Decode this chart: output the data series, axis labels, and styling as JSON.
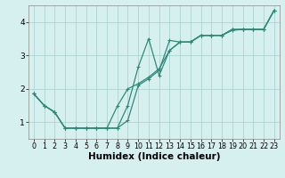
{
  "title": "",
  "xlabel": "Humidex (Indice chaleur)",
  "ylabel": "",
  "bg_color": "#d6f0f0",
  "line_color": "#2e8b7a",
  "grid_color": "#aed4d4",
  "xlim": [
    -0.5,
    23.5
  ],
  "ylim": [
    0.5,
    4.5
  ],
  "xticks": [
    0,
    1,
    2,
    3,
    4,
    5,
    6,
    7,
    8,
    9,
    10,
    11,
    12,
    13,
    14,
    15,
    16,
    17,
    18,
    19,
    20,
    21,
    22,
    23
  ],
  "yticks": [
    1,
    2,
    3,
    4
  ],
  "series1_x": [
    0,
    1,
    2,
    3,
    4,
    5,
    6,
    7,
    8,
    9,
    10,
    11,
    12,
    13,
    14,
    15,
    16,
    17,
    18,
    19,
    20,
    21,
    22,
    23
  ],
  "series1_y": [
    1.85,
    1.5,
    1.3,
    0.82,
    0.82,
    0.82,
    0.82,
    0.82,
    0.82,
    1.05,
    2.1,
    2.3,
    2.55,
    3.45,
    3.4,
    3.4,
    3.6,
    3.6,
    3.6,
    3.75,
    3.78,
    3.78,
    3.78,
    4.35
  ],
  "series2_x": [
    0,
    1,
    2,
    3,
    4,
    5,
    6,
    7,
    8,
    9,
    10,
    11,
    12,
    13,
    14,
    15,
    16,
    17,
    18,
    19,
    20,
    21,
    22,
    23
  ],
  "series2_y": [
    1.85,
    1.5,
    1.3,
    0.82,
    0.82,
    0.82,
    0.82,
    0.82,
    0.82,
    1.5,
    2.65,
    3.5,
    2.4,
    3.15,
    3.4,
    3.4,
    3.6,
    3.6,
    3.6,
    3.78,
    3.78,
    3.78,
    3.78,
    4.35
  ],
  "series3_x": [
    0,
    1,
    2,
    3,
    4,
    5,
    6,
    7,
    8,
    9,
    10,
    11,
    12,
    13,
    14,
    15,
    16,
    17,
    18,
    19,
    20,
    21,
    22,
    23
  ],
  "series3_y": [
    1.85,
    1.5,
    1.3,
    0.82,
    0.82,
    0.82,
    0.82,
    0.82,
    1.48,
    2.0,
    2.15,
    2.35,
    2.6,
    3.15,
    3.4,
    3.4,
    3.6,
    3.6,
    3.6,
    3.78,
    3.78,
    3.78,
    3.78,
    4.35
  ],
  "marker": "+",
  "markersize": 3,
  "linewidth": 0.9,
  "xlabel_fontsize": 7.5,
  "tick_fontsize": 6.5,
  "spine_color": "#888888"
}
